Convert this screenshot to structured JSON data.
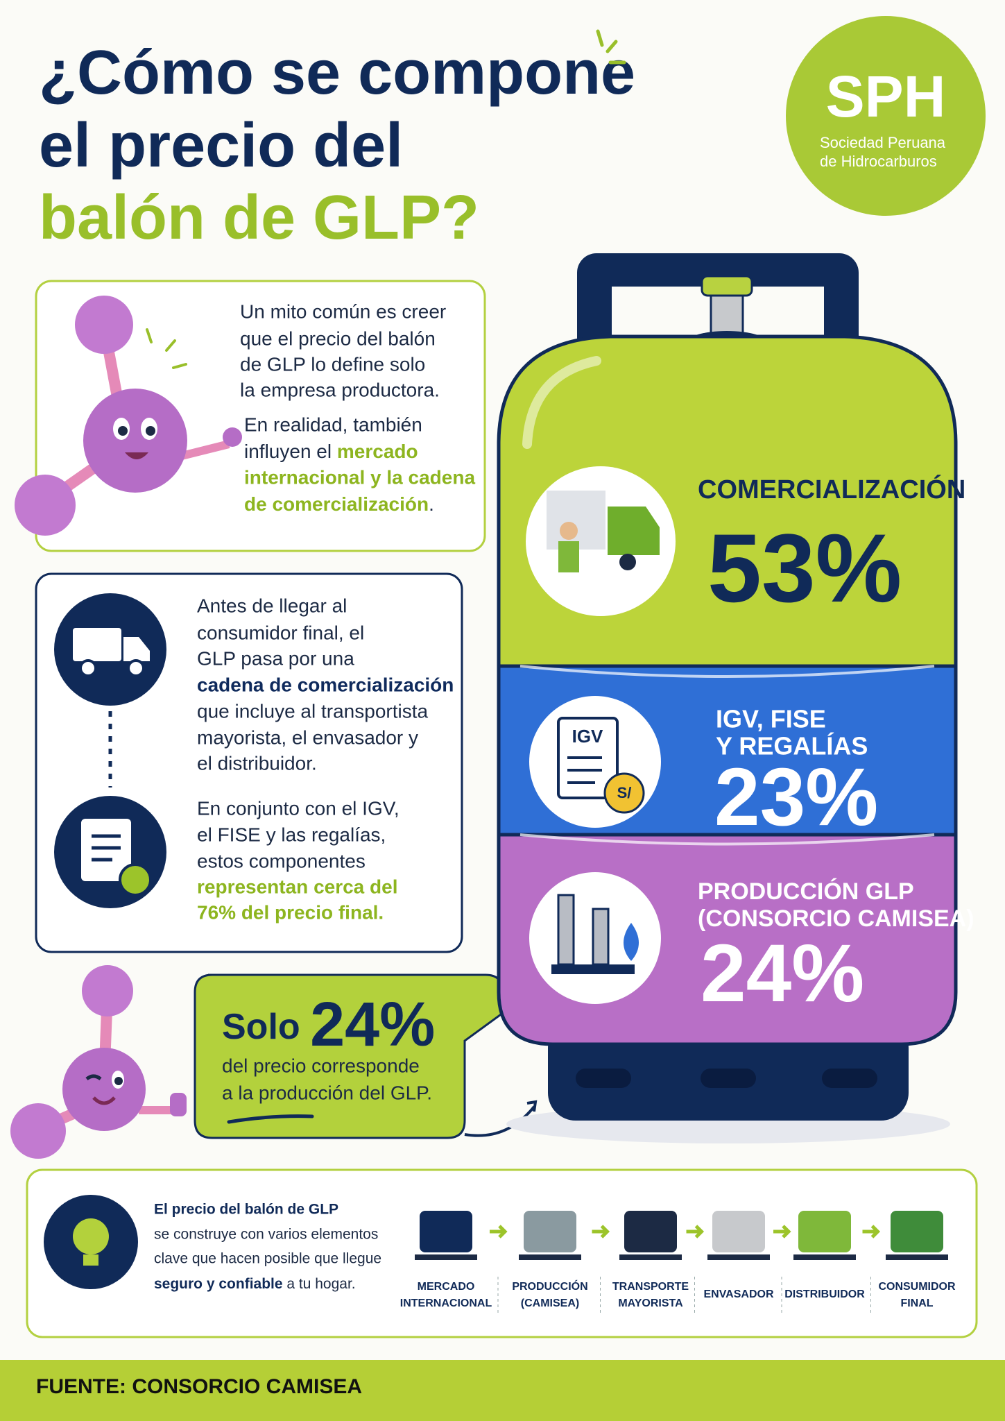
{
  "header": {
    "title_lines": [
      "¿Cómo se compone",
      "el precio del",
      "balón de GLP?"
    ]
  },
  "logo": {
    "abbr": "SPH",
    "name_lines": [
      "Sociedad Peruana",
      "de Hidrocarburos"
    ]
  },
  "myth": {
    "lines": [
      "Un mito común es creer",
      "que el precio del balón",
      "de GLP lo define solo",
      "la empresa productora."
    ],
    "reality": [
      "En realidad, también",
      "influyen el ",
      "mercado",
      "internacional y la cadena",
      "de comercialización",
      "."
    ]
  },
  "chain_info": {
    "lines": [
      "Antes de llegar al",
      "consumidor final, el",
      "GLP pasa por una",
      "cadena de comercialización",
      "que incluye al transportista",
      "mayorista, el envasador y",
      "el distribuidor."
    ],
    "lines2": [
      "En conjunto con el IGV,",
      "el FISE y las regalías,",
      "estos componentes",
      "representan cerca del",
      "76% del precio final."
    ]
  },
  "bubble": {
    "lead": "Solo ",
    "highlight": "24%",
    "lines": [
      "del precio corresponde",
      "a la producción del GLP."
    ]
  },
  "cylinder": {
    "sections": [
      {
        "label_lines": [
          "COMERCIALIZACIÓN"
        ],
        "share": "53%"
      },
      {
        "label_lines": [
          "IGV, FISE",
          "Y REGALÍAS"
        ],
        "share": "23%",
        "icon_text": "IGV",
        "coin_text": "S/"
      },
      {
        "label_lines": [
          "PRODUCCIÓN GLP",
          "(CONSORCIO CAMISEA)"
        ],
        "share": "24%"
      }
    ]
  },
  "summary": {
    "lines": [
      "El precio del balón de GLP",
      "se construye con varios elementos",
      "clave que hacen posible que llegue",
      "seguro y confiable",
      " a tu hogar."
    ],
    "steps": [
      [
        "MERCADO",
        "INTERNACIONAL"
      ],
      [
        "PRODUCCIÓN",
        "(CAMISEA)"
      ],
      [
        "TRANSPORTE",
        "MAYORISTA"
      ],
      [
        "ENVASADOR"
      ],
      [
        "DISTRIBUIDOR"
      ],
      [
        "CONSUMIDOR",
        "FINAL"
      ]
    ]
  },
  "footer": {
    "source": "FUENTE: CONSORCIO CAMISEA"
  }
}
